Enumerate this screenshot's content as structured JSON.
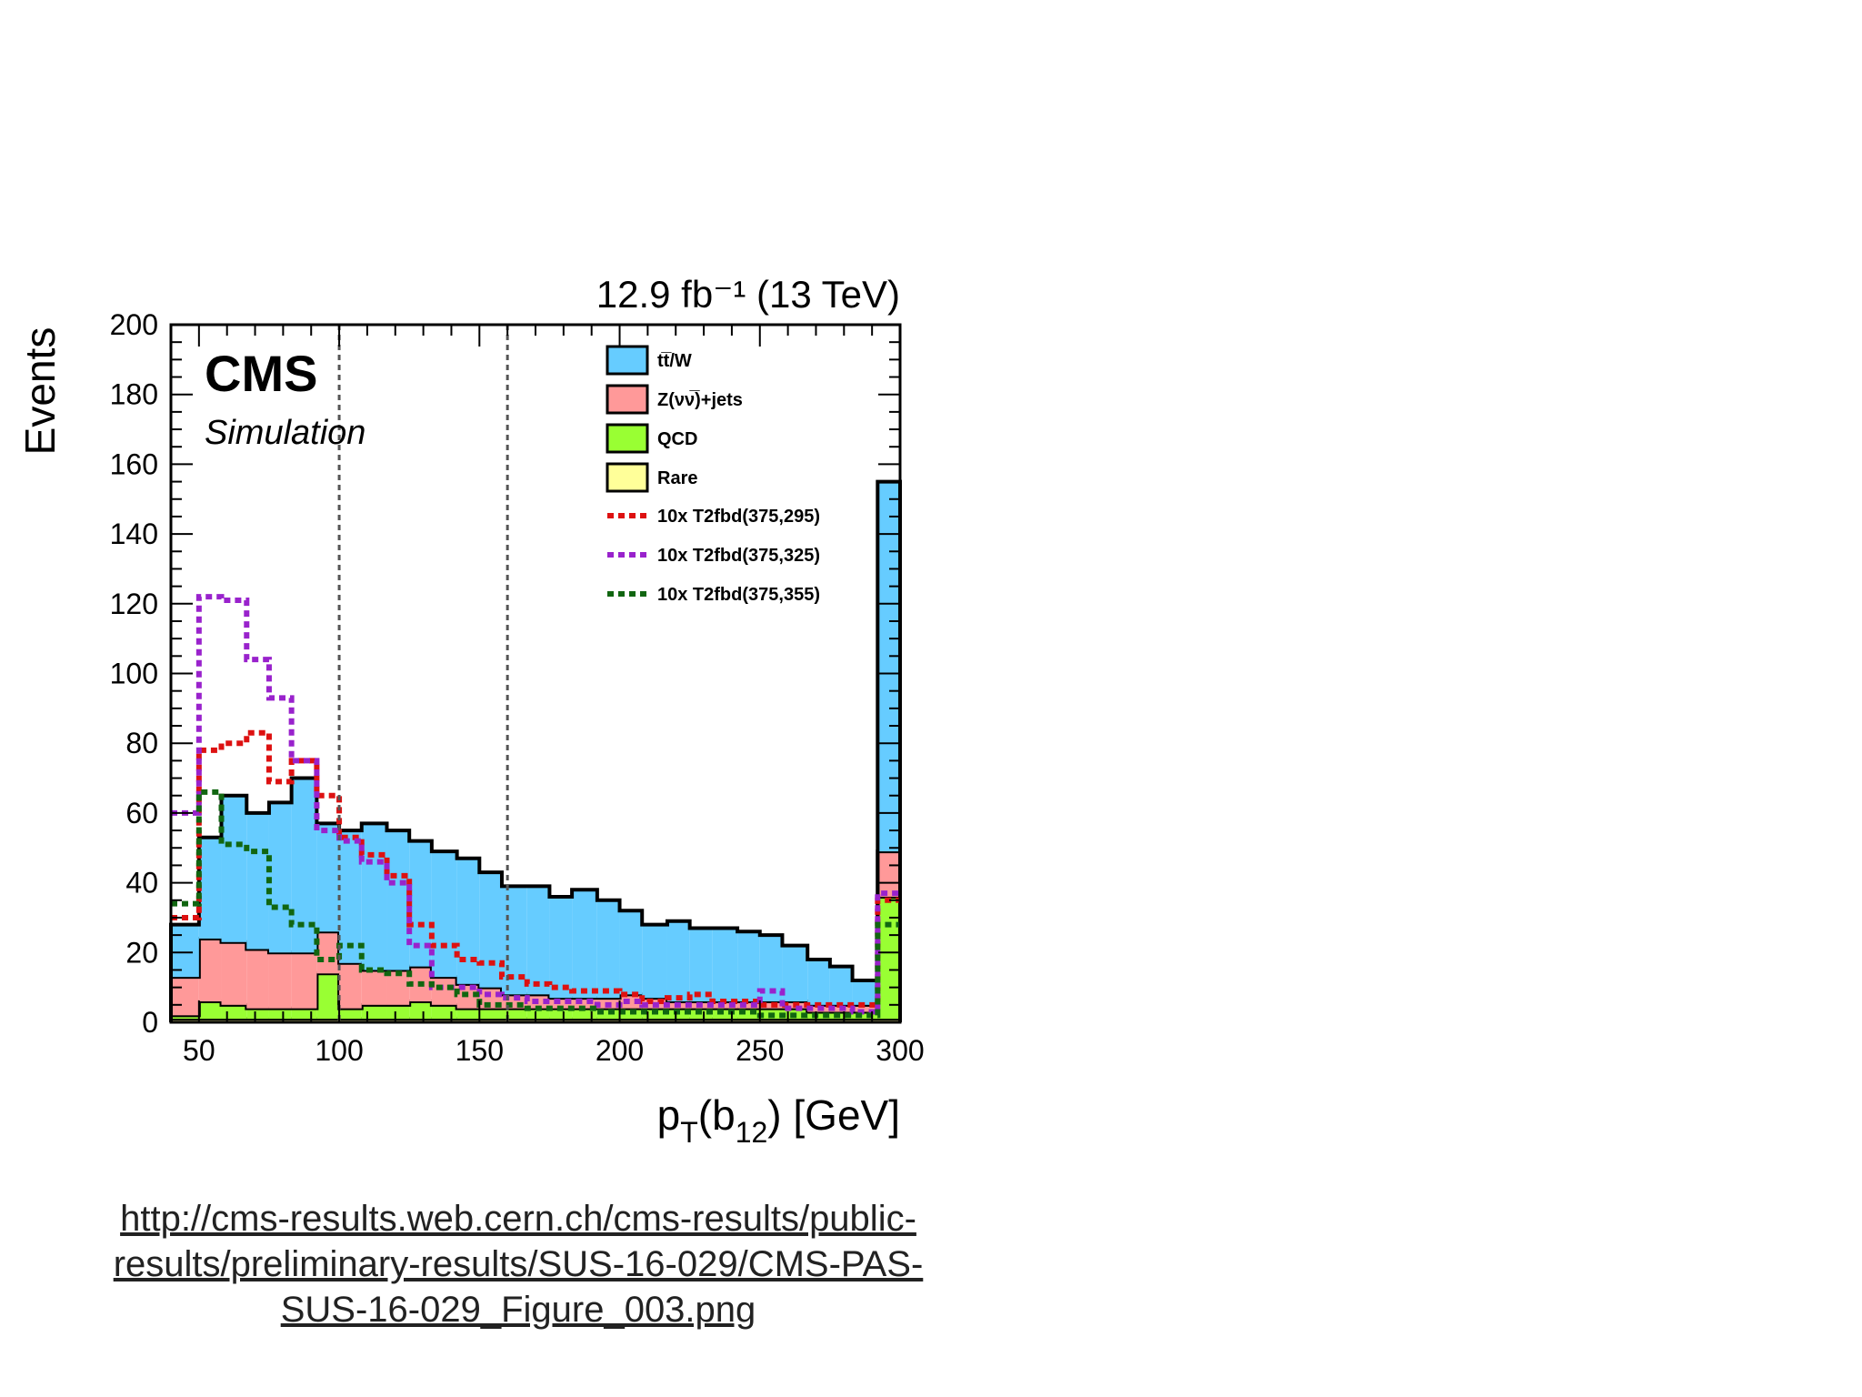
{
  "chart_data": {
    "type": "bar",
    "subtype": "stacked-step-histogram",
    "title": "",
    "lumi_label": "12.9 fb⁻¹ (13 TeV)",
    "experiment_label": "CMS",
    "experiment_sublabel": "Simulation",
    "xlabel": "p_T(b_12) [GeV]",
    "ylabel": "Events",
    "xlim": [
      40,
      300
    ],
    "ylim": [
      0,
      200
    ],
    "x_ticks": [
      50,
      100,
      150,
      200,
      250,
      300
    ],
    "y_ticks": [
      0,
      20,
      40,
      60,
      80,
      100,
      120,
      140,
      160,
      180,
      200
    ],
    "vertical_lines_x": [
      100,
      160
    ],
    "bin_edges": [
      40,
      50,
      58,
      67,
      75,
      83,
      92,
      100,
      108,
      117,
      125,
      133,
      142,
      150,
      158,
      167,
      175,
      183,
      192,
      200,
      208,
      217,
      225,
      233,
      242,
      250,
      258,
      267,
      275,
      283,
      292,
      300
    ],
    "stacked_series": [
      {
        "name": "Rare",
        "color": "#ffff99",
        "values": [
          1,
          1,
          1,
          1,
          1,
          1,
          1,
          1,
          1,
          1,
          1,
          1,
          1,
          1,
          1,
          1,
          1,
          1,
          1,
          1,
          1,
          1,
          1,
          1,
          1,
          1,
          1,
          1,
          1,
          1,
          1
        ]
      },
      {
        "name": "QCD",
        "color": "#99ff33",
        "values": [
          1,
          5,
          4,
          3,
          3,
          3,
          13,
          3,
          4,
          4,
          5,
          4,
          3,
          3,
          3,
          3,
          3,
          3,
          3,
          3,
          3,
          3,
          3,
          3,
          3,
          3,
          3,
          2,
          2,
          2,
          35
        ]
      },
      {
        "name": "Z(νν̅)+jets",
        "color": "#ff9999",
        "values": [
          11,
          18,
          18,
          17,
          16,
          16,
          12,
          13,
          10,
          10,
          10,
          8,
          7,
          6,
          4,
          4,
          3,
          3,
          3,
          4,
          3,
          2,
          2,
          2,
          2,
          2,
          2,
          2,
          2,
          2,
          13
        ]
      },
      {
        "name": "tt̅/W",
        "color": "#66ccff",
        "values": [
          15,
          29,
          42,
          39,
          43,
          50,
          31,
          38,
          42,
          40,
          36,
          36,
          36,
          33,
          31,
          31,
          29,
          31,
          28,
          24,
          21,
          23,
          21,
          21,
          20,
          19,
          16,
          13,
          11,
          7,
          106
        ]
      }
    ],
    "signal_series": [
      {
        "name": "10x  T2fbd(375,295)",
        "color": "#dd1111",
        "values": [
          30,
          78,
          80,
          83,
          69,
          75,
          65,
          53,
          48,
          42,
          28,
          22,
          18,
          17,
          13,
          11,
          10,
          9,
          9,
          8,
          6,
          7,
          8,
          6,
          6,
          5,
          5,
          5,
          5,
          5,
          35
        ]
      },
      {
        "name": "10x  T2fbd(375,325)",
        "color": "#9922cc",
        "values": [
          60,
          122,
          121,
          104,
          93,
          75,
          55,
          52,
          46,
          40,
          22,
          10,
          10,
          8,
          7,
          6,
          6,
          6,
          5,
          6,
          5,
          5,
          5,
          5,
          5,
          9,
          4,
          4,
          4,
          3,
          37
        ]
      },
      {
        "name": "10x  T2fbd(375,355)",
        "color": "#116611",
        "values": [
          34,
          66,
          51,
          49,
          33,
          28,
          18,
          22,
          15,
          14,
          11,
          10,
          8,
          5,
          5,
          4,
          4,
          4,
          3,
          3,
          3,
          3,
          3,
          3,
          3,
          2,
          2,
          2,
          2,
          2,
          28
        ]
      }
    ]
  },
  "footer": {
    "link_line1": "http://cms-results.web.cern.ch/cms-results/public-",
    "link_line2": "results/preliminary-results/SUS-16-029/CMS-PAS-",
    "link_line3": "SUS-16-029_Figure_003.png"
  }
}
